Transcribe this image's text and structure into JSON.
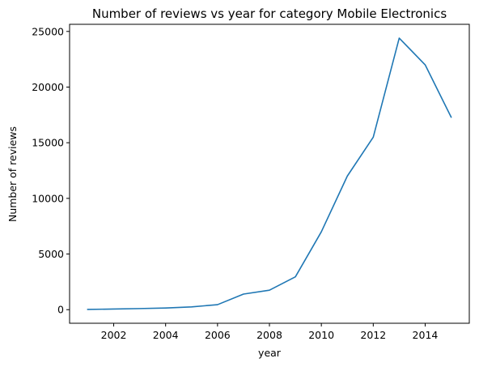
{
  "chart_data": {
    "type": "line",
    "title": "Number of reviews vs year for category Mobile Electronics",
    "xlabel": "year",
    "ylabel": "Number of reviews",
    "xlim": [
      2000.3,
      2015.7
    ],
    "ylim": [
      -1220,
      25640
    ],
    "x_ticks": [
      2002,
      2004,
      2006,
      2008,
      2010,
      2012,
      2014
    ],
    "y_ticks": [
      0,
      5000,
      10000,
      15000,
      20000,
      25000
    ],
    "grid": false,
    "line_color": "#1f77b4",
    "series": [
      {
        "x": [
          2001,
          2002,
          2003,
          2004,
          2005,
          2006,
          2007,
          2008,
          2009,
          2010,
          2011,
          2012,
          2013,
          2014,
          2015
        ],
        "values": [
          20,
          60,
          100,
          150,
          250,
          450,
          1400,
          1750,
          2950,
          7000,
          12000,
          15500,
          24400,
          22000,
          17300
        ]
      }
    ]
  }
}
